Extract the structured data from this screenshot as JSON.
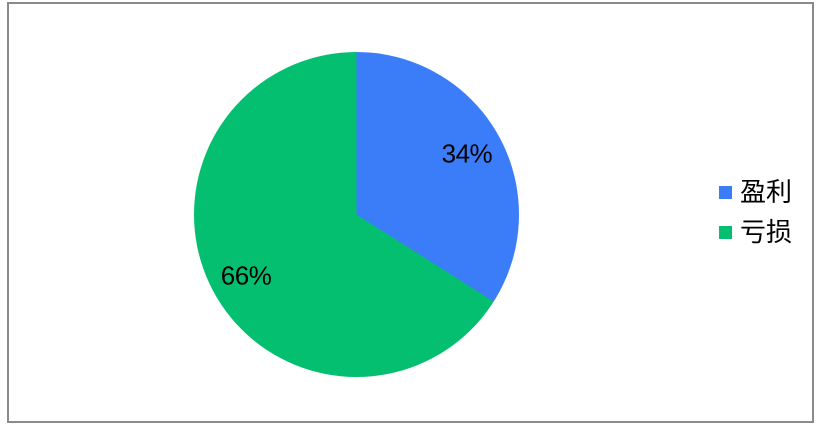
{
  "window": {
    "background_color": "#ffffff",
    "frame_border_color": "#8a8a8a"
  },
  "chart_data": {
    "type": "pie",
    "title": "",
    "start_angle": "top",
    "direction": "clockwise",
    "legend_position": "right",
    "grid": false,
    "data_label_color": "#000000",
    "legend_text_color": "#000000",
    "categories": [
      "盈利",
      "亏损"
    ],
    "values": [
      34,
      66
    ],
    "slices": [
      {
        "label": "盈利",
        "value": 34,
        "data_label": "34%",
        "color": "#3b7df8"
      },
      {
        "label": "亏损",
        "value": 66,
        "data_label": "66%",
        "color": "#04bf6f"
      }
    ]
  }
}
